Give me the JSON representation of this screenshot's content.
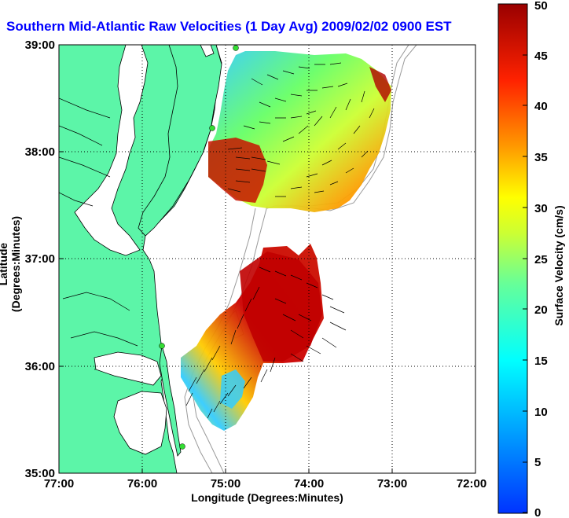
{
  "title": "Southern Mid-Atlantic Raw Velocities (1 Day Avg) 2009/02/02 0900 EST",
  "axes": {
    "xlabel": "Longitude (Degrees:Minutes)",
    "ylabel": "Latitude (Degrees:Minutes)",
    "x_ticks": [
      "77:00",
      "76:00",
      "75:00",
      "74:00",
      "73:00",
      "72:00"
    ],
    "y_ticks": [
      "39:00",
      "38:00",
      "37:00",
      "36:00",
      "35:00"
    ],
    "xlim": [
      -77,
      -72
    ],
    "ylim": [
      35,
      39
    ],
    "grid": true
  },
  "colorbar": {
    "label": "Surface Velocity (cm/s)",
    "ticks": [
      "50",
      "45",
      "40",
      "35",
      "30",
      "25",
      "20",
      "15",
      "10",
      "5",
      "0"
    ],
    "range": [
      0,
      50
    ]
  },
  "colors": {
    "land": "#5cf5a8",
    "water": "#ffffff",
    "title": "#0000ff",
    "station": "#33dd33",
    "bathymetry": "#9a9a9a"
  }
}
